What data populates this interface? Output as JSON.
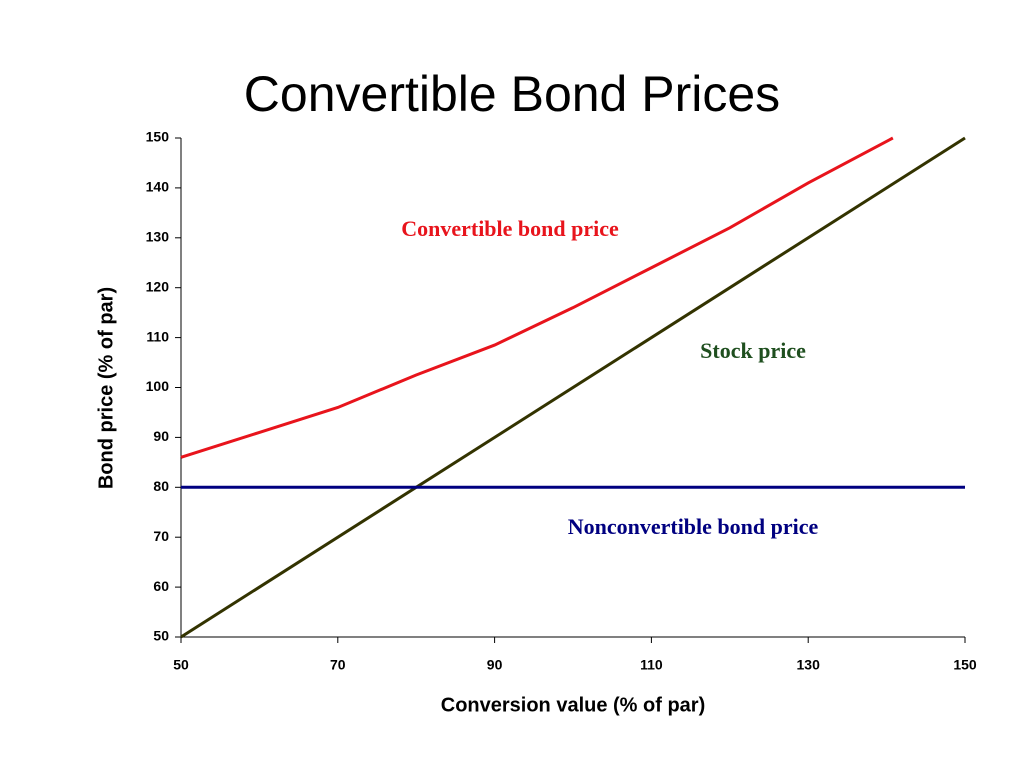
{
  "chart_data": {
    "type": "line",
    "title": "Convertible Bond Prices",
    "x_label": "Conversion value (% of par)",
    "y_label": "Bond price (% of par)",
    "xlim": [
      50,
      150
    ],
    "ylim": [
      50,
      150
    ],
    "xticks": [
      50,
      70,
      90,
      110,
      130,
      150
    ],
    "yticks": [
      50,
      60,
      70,
      80,
      90,
      100,
      110,
      120,
      130,
      140,
      150
    ],
    "series": [
      {
        "name": "Convertible bond price",
        "color": "#e8141c",
        "x": [
          50,
          60,
          70,
          80,
          90,
          100,
          110,
          120,
          130,
          140.8
        ],
        "values": [
          86,
          91,
          96,
          102.5,
          108.5,
          116,
          124,
          132,
          141,
          150
        ]
      },
      {
        "name": "Stock price",
        "color": "#333300",
        "label_color": "#1f4f1f",
        "x": [
          50,
          150
        ],
        "values": [
          50,
          150
        ]
      },
      {
        "name": "Nonconvertible bond price",
        "color": "#000080",
        "x": [
          50,
          150
        ],
        "values": [
          80,
          80
        ]
      }
    ]
  }
}
